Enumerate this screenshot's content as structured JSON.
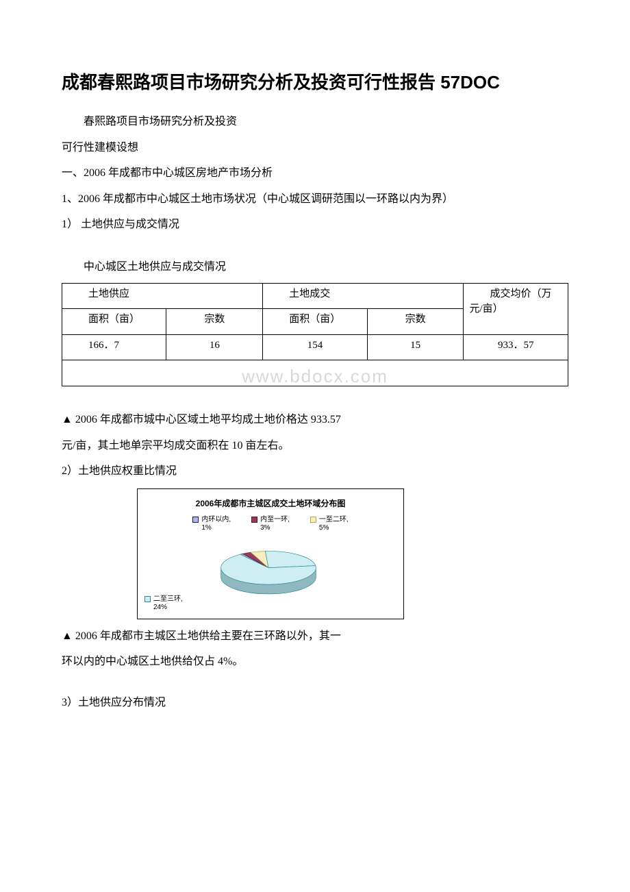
{
  "title": "成都春熙路项目市场研究分析及投资可行性报告 57DOC",
  "paras": {
    "p1": "春熙路项目市场研究分析及投资",
    "p2": "可行性建模设想",
    "p3": "一、2006 年成都市中心城区房地产市场分析",
    "p4": "1、2006 年成都市中心城区土地市场状况（中心城区调研范围以一环路以内为界）",
    "p5": "1） 土地供应与成交情况",
    "table_caption": "中心城区土地供应与成交情况",
    "p6": "▲ 2006 年成都市城中心区域土地平均成土地价格达 933.57",
    "p7": "元/亩，其土地单宗平均成交面积在 10 亩左右。",
    "p8": "2）土地供应权重比情况",
    "p9": "▲ 2006 年成都市主城区土地供给主要在三环路以外，其一",
    "p10": "环以内的中心城区土地供给仅占 4%。",
    "p11": "3）土地供应分布情况"
  },
  "table": {
    "header": {
      "supply": "土地供应",
      "deal": "土地成交",
      "avg": "成交均价（万元/亩）",
      "area": "面积（亩）",
      "count": "宗数"
    },
    "row": {
      "supply_area": "166．7",
      "supply_count": "16",
      "deal_area": "154",
      "deal_count": "15",
      "avg": "933．57"
    }
  },
  "watermark": "www.bdocx.com",
  "chart": {
    "title": "2006年成都市主城区成交土地环域分布图",
    "type": "pie-3d",
    "slices": [
      {
        "label": "内环以内",
        "value_label": "1%",
        "value": 1,
        "fill": "#b7b5e4",
        "stroke": "#17177a"
      },
      {
        "label": "内至一环",
        "value_label": "3%",
        "value": 3,
        "fill": "#9a3a5a",
        "stroke": "#5a1030"
      },
      {
        "label": "一至二环",
        "value_label": "5%",
        "value": 5,
        "fill": "#f5eec2",
        "stroke": "#b8a840"
      },
      {
        "label": "二至三环",
        "value_label": "24%",
        "value": 24,
        "fill": "#cfeef2",
        "stroke": "#2a8aa0"
      }
    ],
    "remainder_fill": "#cfeef2",
    "side_fill": "#8fb8c0",
    "font_size_title": 12,
    "font_size_legend": 10,
    "background": "#ffffff"
  }
}
